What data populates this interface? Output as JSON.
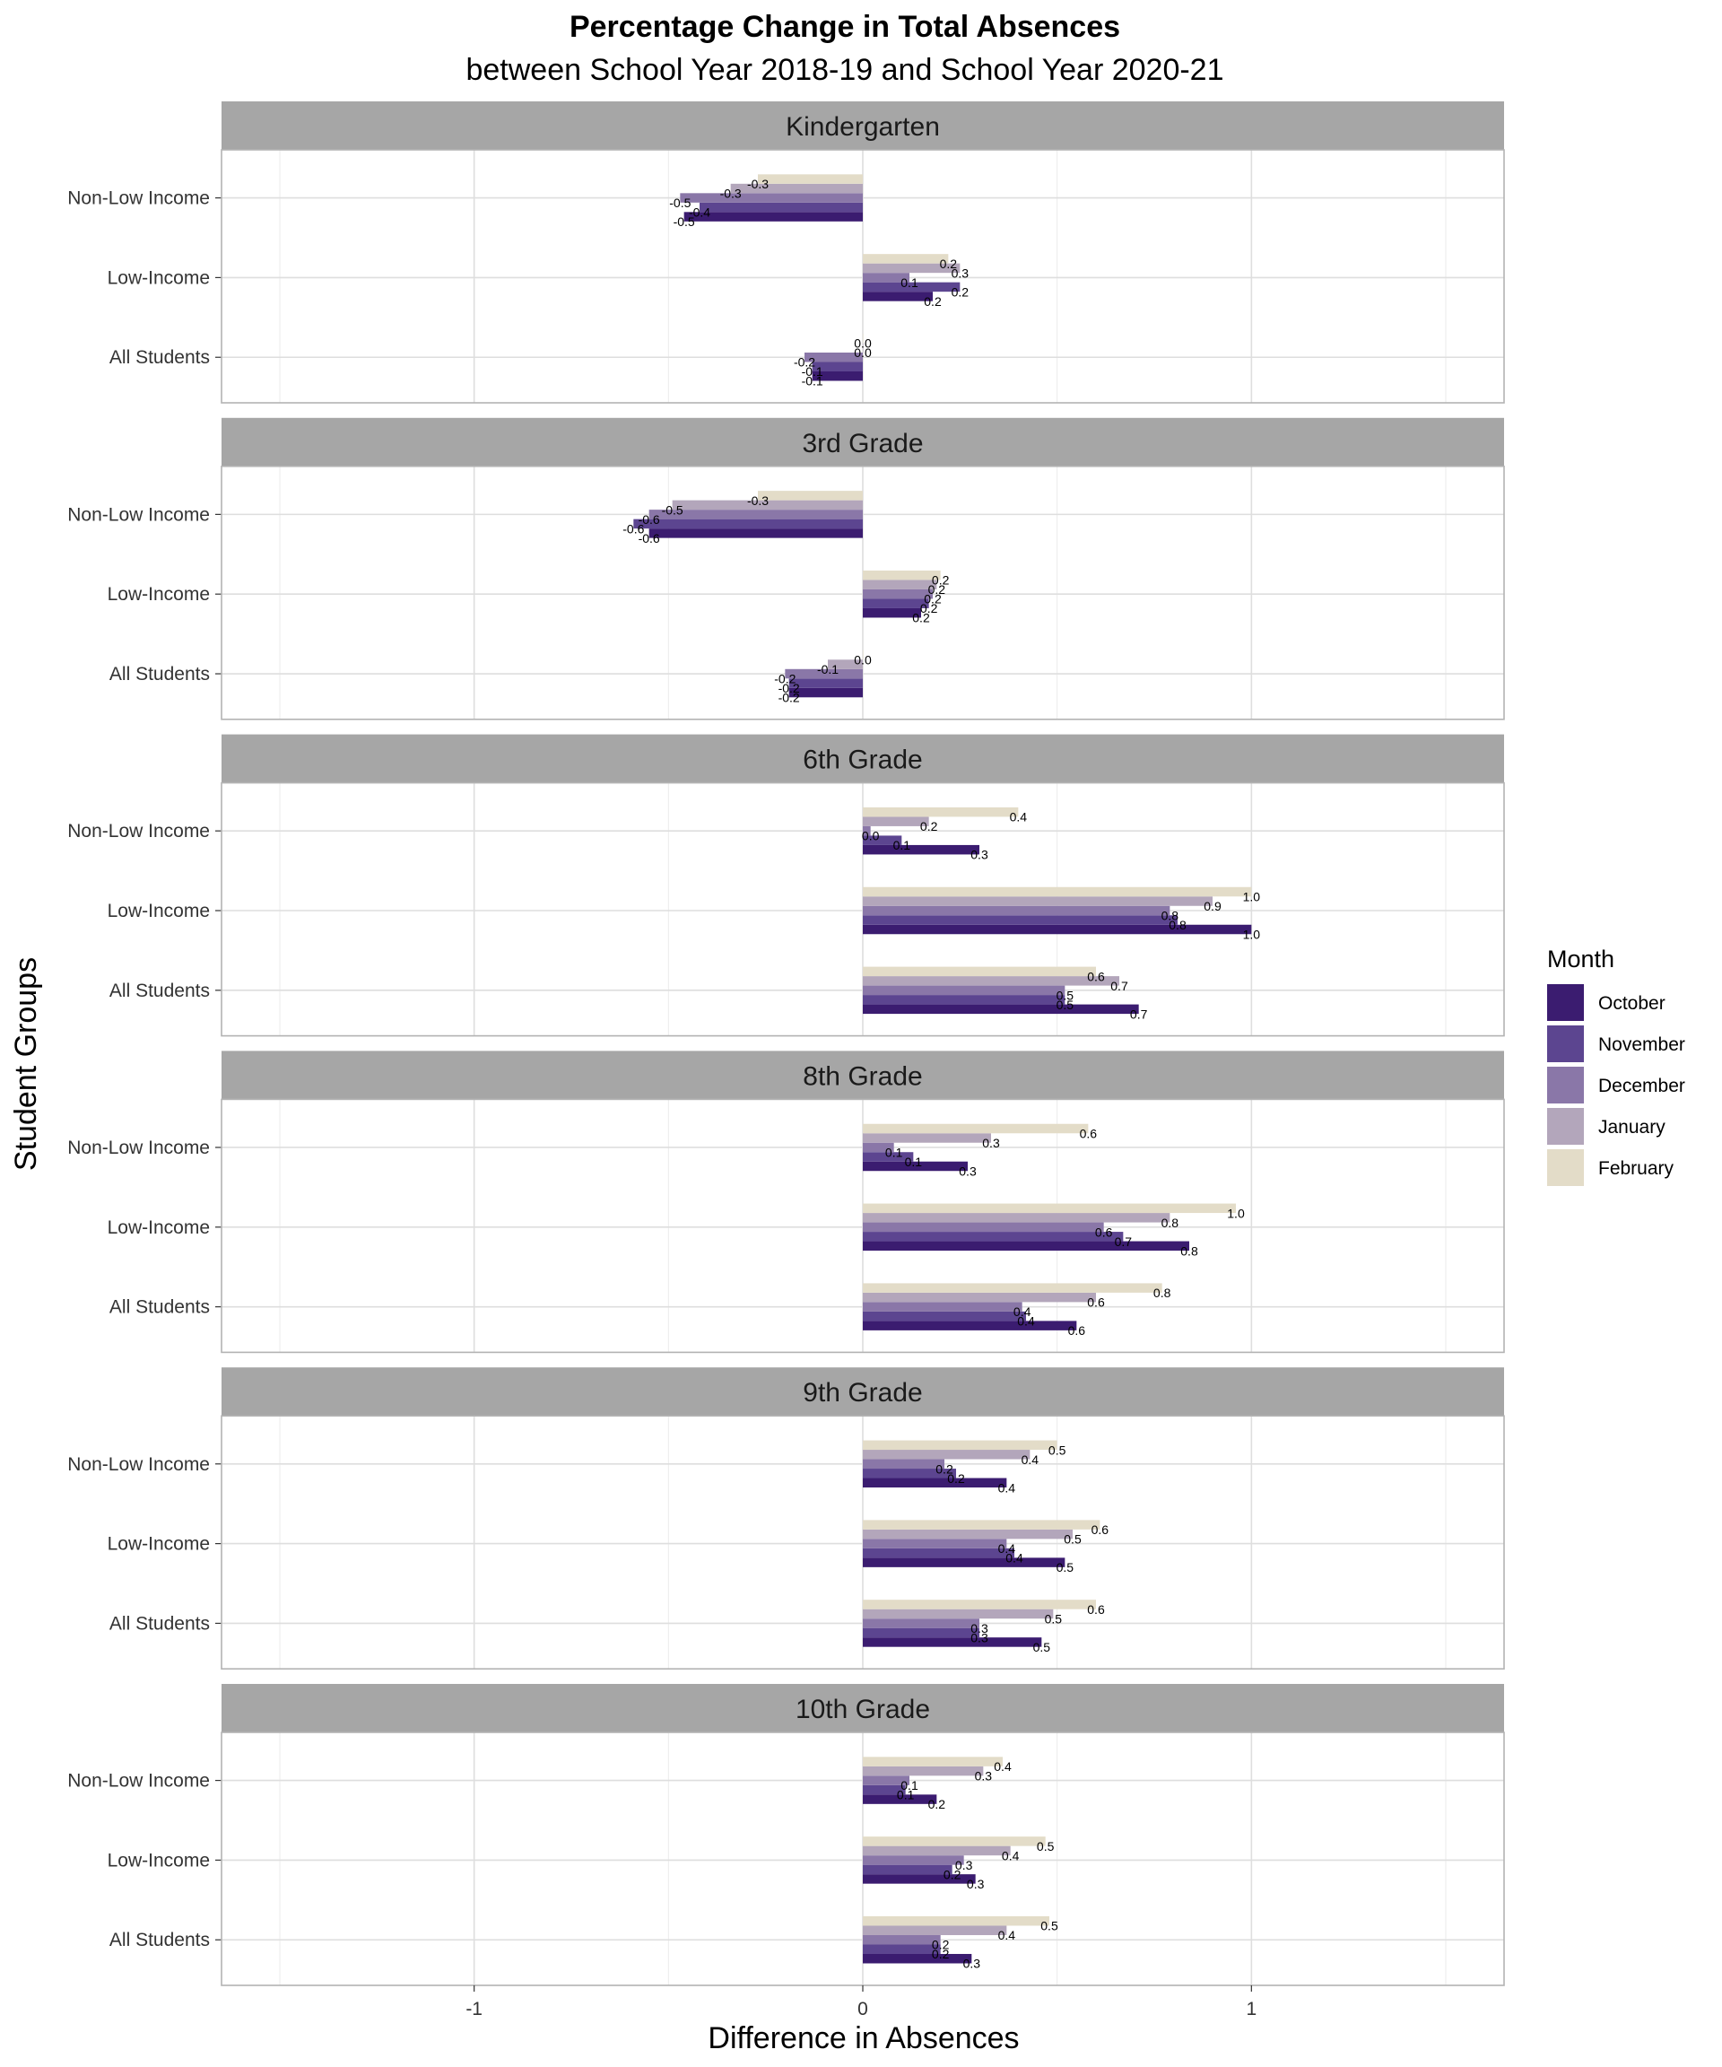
{
  "title": "Percentage Change in Total Absences",
  "subtitle": "between School Year 2018-19 and School Year 2020-21",
  "xlabel": "Difference in Absences",
  "ylabel": "Student Groups",
  "legend": {
    "title": "Month",
    "position": "right",
    "items": [
      {
        "label": "October",
        "color": "#3b1c70"
      },
      {
        "label": "November",
        "color": "#5c4590"
      },
      {
        "label": "December",
        "color": "#8a77a8"
      },
      {
        "label": "January",
        "color": "#b3a6bb"
      },
      {
        "label": "February",
        "color": "#e3dcc8"
      }
    ]
  },
  "chart_data": {
    "type": "bar",
    "orientation": "horizontal",
    "facet_by": "grade",
    "xlim": [
      -1.65,
      1.65
    ],
    "x_ticks": [
      -1,
      0,
      1
    ],
    "x_tick_labels": [
      "-1",
      "0",
      "1"
    ],
    "grid": true,
    "categories": [
      "Non-Low Income",
      "Low-Income",
      "All Students"
    ],
    "series_names": [
      "October",
      "November",
      "December",
      "January",
      "February"
    ],
    "panels": [
      {
        "name": "Kindergarten",
        "groups": [
          {
            "category": "Non-Low Income",
            "values": [
              -0.46,
              -0.42,
              -0.47,
              -0.34,
              -0.27
            ],
            "labels": [
              "-0.5",
              "-0.4",
              "-0.5",
              "-0.3",
              "-0.3"
            ]
          },
          {
            "category": "Low-Income",
            "values": [
              0.18,
              0.25,
              0.12,
              0.25,
              0.22
            ],
            "labels": [
              "0.2",
              "0.2",
              "0.1",
              "0.3",
              "0.2"
            ]
          },
          {
            "category": "All Students",
            "values": [
              -0.13,
              -0.13,
              -0.15,
              0.0,
              0.0
            ],
            "labels": [
              "-0.1",
              "-0.1",
              "-0.2",
              "0.0",
              "0.0"
            ]
          }
        ]
      },
      {
        "name": "3rd Grade",
        "groups": [
          {
            "category": "Non-Low Income",
            "values": [
              -0.55,
              -0.59,
              -0.55,
              -0.49,
              -0.27
            ],
            "labels": [
              "-0.6",
              "-0.6",
              "-0.6",
              "-0.5",
              "-0.3"
            ]
          },
          {
            "category": "Low-Income",
            "values": [
              0.15,
              0.17,
              0.18,
              0.19,
              0.2
            ],
            "labels": [
              "0.2",
              "0.2",
              "0.2",
              "0.2",
              "0.2"
            ]
          },
          {
            "category": "All Students",
            "values": [
              -0.19,
              -0.19,
              -0.2,
              -0.09,
              0.0
            ],
            "labels": [
              "-0.2",
              "-0.2",
              "-0.2",
              "-0.1",
              "0.0"
            ]
          }
        ]
      },
      {
        "name": "6th Grade",
        "groups": [
          {
            "category": "Non-Low Income",
            "values": [
              0.3,
              0.1,
              0.02,
              0.17,
              0.4
            ],
            "labels": [
              "0.3",
              "0.1",
              "0.0",
              "0.2",
              "0.4"
            ]
          },
          {
            "category": "Low-Income",
            "values": [
              1.0,
              0.81,
              0.79,
              0.9,
              1.0
            ],
            "labels": [
              "1.0",
              "0.8",
              "0.8",
              "0.9",
              "1.0"
            ]
          },
          {
            "category": "All Students",
            "values": [
              0.71,
              0.52,
              0.52,
              0.66,
              0.6
            ],
            "labels": [
              "0.7",
              "0.5",
              "0.5",
              "0.7",
              "0.6"
            ]
          }
        ]
      },
      {
        "name": "8th Grade",
        "groups": [
          {
            "category": "Non-Low Income",
            "values": [
              0.27,
              0.13,
              0.08,
              0.33,
              0.58
            ],
            "labels": [
              "0.3",
              "0.1",
              "0.1",
              "0.3",
              "0.6"
            ]
          },
          {
            "category": "Low-Income",
            "values": [
              0.84,
              0.67,
              0.62,
              0.79,
              0.96
            ],
            "labels": [
              "0.8",
              "0.7",
              "0.6",
              "0.8",
              "1.0"
            ]
          },
          {
            "category": "All Students",
            "values": [
              0.55,
              0.42,
              0.41,
              0.6,
              0.77
            ],
            "labels": [
              "0.6",
              "0.4",
              "0.4",
              "0.6",
              "0.8"
            ]
          }
        ]
      },
      {
        "name": "9th Grade",
        "groups": [
          {
            "category": "Non-Low Income",
            "values": [
              0.37,
              0.24,
              0.21,
              0.43,
              0.5
            ],
            "labels": [
              "0.4",
              "0.2",
              "0.2",
              "0.4",
              "0.5"
            ]
          },
          {
            "category": "Low-Income",
            "values": [
              0.52,
              0.39,
              0.37,
              0.54,
              0.61
            ],
            "labels": [
              "0.5",
              "0.4",
              "0.4",
              "0.5",
              "0.6"
            ]
          },
          {
            "category": "All Students",
            "values": [
              0.46,
              0.3,
              0.3,
              0.49,
              0.6
            ],
            "labels": [
              "0.5",
              "0.3",
              "0.3",
              "0.5",
              "0.6"
            ]
          }
        ]
      },
      {
        "name": "10th Grade",
        "groups": [
          {
            "category": "Non-Low Income",
            "values": [
              0.19,
              0.11,
              0.12,
              0.31,
              0.36
            ],
            "labels": [
              "0.2",
              "0.1",
              "0.1",
              "0.3",
              "0.4"
            ]
          },
          {
            "category": "Low-Income",
            "values": [
              0.29,
              0.23,
              0.26,
              0.38,
              0.47
            ],
            "labels": [
              "0.3",
              "0.2",
              "0.3",
              "0.4",
              "0.5"
            ]
          },
          {
            "category": "All Students",
            "values": [
              0.28,
              0.2,
              0.2,
              0.37,
              0.48
            ],
            "labels": [
              "0.3",
              "0.2",
              "0.2",
              "0.4",
              "0.5"
            ]
          }
        ]
      }
    ]
  }
}
